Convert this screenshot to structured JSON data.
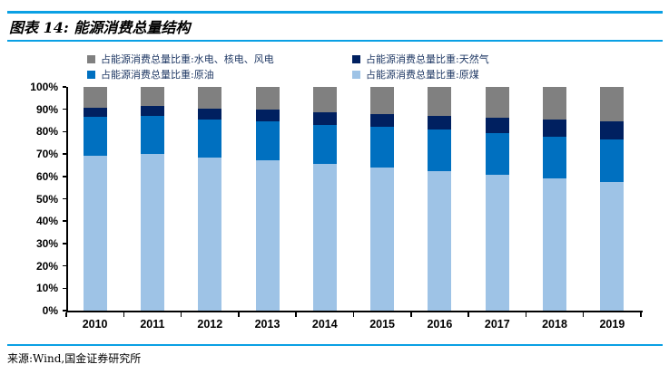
{
  "header": {
    "title": "图表 14: 能源消费总量结构"
  },
  "legend": {
    "items": [
      {
        "name": "hydro-nuclear-wind",
        "label": "占能源消费总量比重:水电、核电、风电",
        "color": "#808080"
      },
      {
        "name": "natural-gas",
        "label": "占能源消费总量比重:天然气",
        "color": "#002060"
      },
      {
        "name": "crude-oil",
        "label": "占能源消费总量比重:原油",
        "color": "#0070C0"
      },
      {
        "name": "raw-coal",
        "label": "占能源消费总量比重:原煤",
        "color": "#9EC3E6"
      }
    ]
  },
  "chart_data": {
    "type": "bar",
    "stacked": true,
    "title": "能源消费总量结构",
    "categories": [
      "2010",
      "2011",
      "2012",
      "2013",
      "2014",
      "2015",
      "2016",
      "2017",
      "2018",
      "2019"
    ],
    "series": [
      {
        "name": "占能源消费总量比重:原煤",
        "color": "#9EC3E6",
        "values": [
          69.2,
          70.2,
          68.5,
          67.4,
          65.8,
          63.8,
          62.2,
          60.6,
          59.0,
          57.7
        ]
      },
      {
        "name": "占能源消费总量比重:原油",
        "color": "#0070C0",
        "values": [
          17.4,
          16.8,
          17.0,
          17.1,
          17.3,
          18.4,
          18.7,
          18.9,
          18.9,
          19.0
        ]
      },
      {
        "name": "占能源消费总量比重:天然气",
        "color": "#002060",
        "values": [
          4.0,
          4.6,
          4.8,
          5.3,
          5.6,
          5.8,
          6.1,
          6.9,
          7.6,
          8.1
        ]
      },
      {
        "name": "占能源消费总量比重:水电、核电、风电",
        "color": "#808080",
        "values": [
          9.4,
          8.4,
          9.7,
          10.2,
          11.3,
          12.0,
          13.0,
          13.6,
          14.5,
          15.2
        ]
      }
    ],
    "xlabel": "",
    "ylabel": "",
    "ylim": [
      0,
      100
    ],
    "y_ticks": [
      "0%",
      "10%",
      "20%",
      "30%",
      "40%",
      "50%",
      "60%",
      "70%",
      "80%",
      "90%",
      "100%"
    ],
    "grid": false,
    "legend_position": "top"
  },
  "footer": {
    "source": "来源:Wind,国金证券研究所"
  },
  "colors": {
    "accent_rule": "#0AA0E4",
    "legend_text": "#1F3864",
    "axis": "#000000"
  }
}
